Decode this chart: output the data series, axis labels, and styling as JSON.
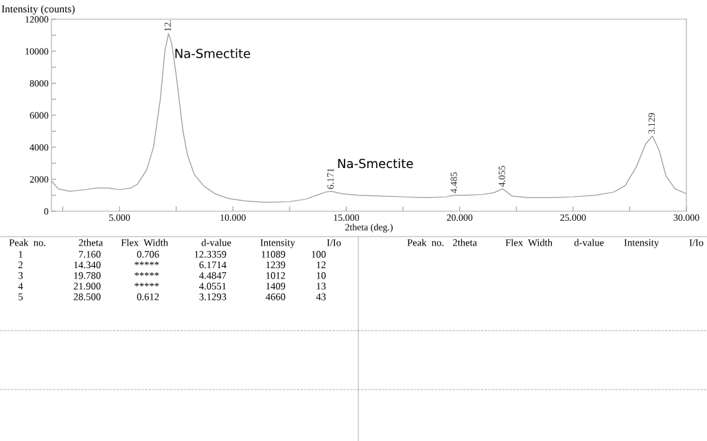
{
  "chart_data": {
    "type": "line",
    "xlabel": "2theta (deg.)",
    "ylabel": "Intensity (counts)",
    "x": [
      2.0,
      2.3,
      2.8,
      3.5,
      4.0,
      4.5,
      5.0,
      5.5,
      5.8,
      6.2,
      6.5,
      6.8,
      7.0,
      7.16,
      7.3,
      7.5,
      7.8,
      8.0,
      8.3,
      8.7,
      9.2,
      9.8,
      10.5,
      11.5,
      12.5,
      13.2,
      13.7,
      14.1,
      14.34,
      14.8,
      15.5,
      16.5,
      17.5,
      18.5,
      19.4,
      19.78,
      20.3,
      21.0,
      21.5,
      21.9,
      22.3,
      23.0,
      24.0,
      25.0,
      26.0,
      26.8,
      27.3,
      27.8,
      28.2,
      28.5,
      28.8,
      29.1,
      29.5,
      30.0
    ],
    "series": [
      {
        "color": "#9a9a9a",
        "values": [
          1900,
          1400,
          1250,
          1350,
          1450,
          1450,
          1350,
          1450,
          1700,
          2600,
          4000,
          7000,
          10000,
          11100,
          10500,
          8500,
          5000,
          3500,
          2300,
          1600,
          1100,
          800,
          650,
          550,
          600,
          750,
          1000,
          1200,
          1250,
          1100,
          1000,
          950,
          900,
          850,
          900,
          1000,
          1000,
          1050,
          1150,
          1400,
          950,
          850,
          850,
          900,
          1000,
          1200,
          1600,
          2800,
          4200,
          4700,
          3800,
          2200,
          1400,
          1100
        ]
      }
    ],
    "xlim": [
      2,
      30
    ],
    "ylim": [
      0,
      12000
    ],
    "xticks": [
      {
        "value": 2.5,
        "label": null
      },
      {
        "value": 5,
        "label": "5.000"
      },
      {
        "value": 7.5,
        "label": null
      },
      {
        "value": 10,
        "label": "10.000"
      },
      {
        "value": 12.5,
        "label": null
      },
      {
        "value": 15,
        "label": "15.000"
      },
      {
        "value": 17.5,
        "label": null
      },
      {
        "value": 20,
        "label": "20.000"
      },
      {
        "value": 22.5,
        "label": null
      },
      {
        "value": 25,
        "label": "25.000"
      },
      {
        "value": 27.5,
        "label": null
      },
      {
        "value": 30,
        "label": "30.000"
      }
    ],
    "yticks": [
      0,
      {
        "value": 1000,
        "label": null
      },
      2000,
      {
        "value": 3000,
        "label": null
      },
      4000,
      {
        "value": 5000,
        "label": null
      },
      6000,
      {
        "value": 7000,
        "label": null
      },
      8000,
      {
        "value": 9000,
        "label": null
      },
      10000,
      {
        "value": 11000,
        "label": null
      },
      12000
    ],
    "grid": false,
    "legend": false,
    "marker": "none",
    "line_style": "solid",
    "annotations": [
      {
        "text": "12.",
        "x": 7.16,
        "y": 11100
      },
      {
        "text": "6.171",
        "x": 14.34,
        "y": 1250
      },
      {
        "text": "4.485",
        "x": 19.78,
        "y": 1000
      },
      {
        "text": "4.055",
        "x": 21.9,
        "y": 1400
      },
      {
        "text": "3.129",
        "x": 28.5,
        "y": 4700
      },
      {
        "text": "Na-Smectite",
        "x": 7.16,
        "y": 11100
      },
      {
        "text": "Na-Smectite",
        "x": 14.34,
        "y": 1250
      },
      "Peak  no.",
      "2theta",
      "Flex  Width",
      "d-value",
      "Intensity",
      "I/Io",
      "Peak  no.",
      "2theta",
      "Flex  Width",
      "d-value",
      "Intensity",
      "I/Io",
      "1",
      "7.160",
      "0.706",
      "12.3359",
      "11089",
      "100",
      "2",
      "14.340",
      "*****",
      "6.1714",
      "1239",
      "12",
      "3",
      "19.780",
      "*****",
      "4.4847",
      "1012",
      "10",
      "4",
      "21.900",
      "*****",
      "4.0551",
      "1409",
      "13",
      "5",
      "28.500",
      "0.612",
      "3.1293",
      "4660",
      "43"
    ]
  }
}
